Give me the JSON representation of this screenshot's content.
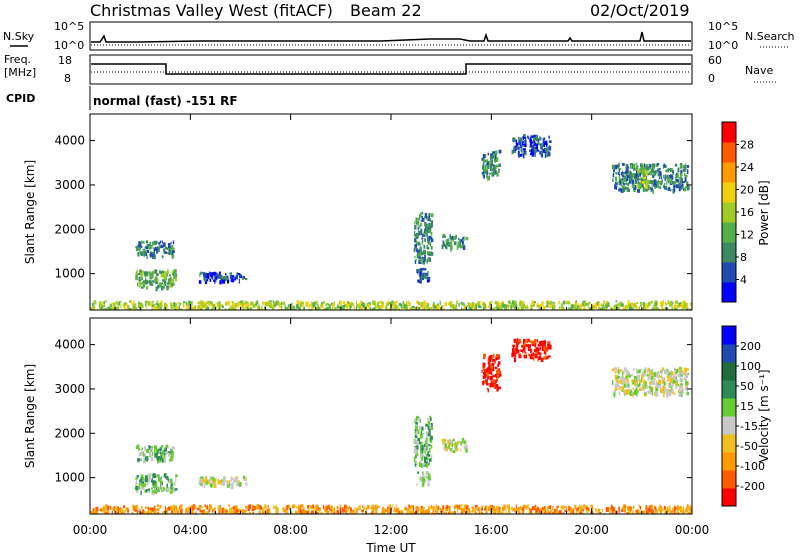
{
  "header": {
    "station": "Christmas Valley West (fitACF)",
    "beam": "Beam 22",
    "date": "02/Oct/2019"
  },
  "panels": {
    "nsky": {
      "left_label": "N.Sky",
      "right_label": "N.Search",
      "left_ticks": [
        "10^5",
        "10^0"
      ],
      "right_ticks": [
        "10^5",
        "10^0"
      ]
    },
    "freq": {
      "left_label_1": "Freq.",
      "left_label_2": "[MHz]",
      "right_label": "Nave",
      "left_ticks": [
        "18",
        "8"
      ],
      "right_ticks": [
        "60",
        "0"
      ]
    },
    "cpid": {
      "left_label": "CPID",
      "text": "normal (fast) -151 RF"
    }
  },
  "colors": {
    "power": [
      "#0000ff",
      "#1f4ab0",
      "#3b8a64",
      "#56b04a",
      "#a0cc28",
      "#f0d010",
      "#ff9a00",
      "#ff5a00",
      "#ff0000"
    ],
    "velocity": [
      "#ff0000",
      "#ff5a00",
      "#ff9a00",
      "#f0c020",
      "#c8c8c8",
      "#66cc33",
      "#2e8b57",
      "#1f6e3a",
      "#1f4ab0",
      "#0000ff"
    ]
  },
  "chart_data": [
    {
      "type": "heatmap",
      "name": "power",
      "xlabel": "",
      "ylabel": "Slant Range [km]",
      "xlim": [
        0,
        24
      ],
      "ylim": [
        180,
        4600
      ],
      "yticks": [
        1000,
        2000,
        3000,
        4000
      ],
      "xticks": [
        0,
        4,
        8,
        12,
        16,
        20,
        24
      ],
      "colorbar": {
        "label": "Power [dB]",
        "ticks": [
          "4",
          "8",
          "12",
          "16",
          "20",
          "24",
          "28"
        ],
        "range": [
          0,
          30
        ]
      },
      "regions": [
        {
          "t": [
            1.8,
            3.3
          ],
          "r": [
            1400,
            1750
          ],
          "level": 2
        },
        {
          "t": [
            1.8,
            3.4
          ],
          "r": [
            700,
            1100
          ],
          "level": 3
        },
        {
          "t": [
            4.3,
            6.2
          ],
          "r": [
            850,
            1050
          ],
          "level": 1
        },
        {
          "t": [
            12.9,
            13.6
          ],
          "r": [
            1300,
            2400
          ],
          "level": 2
        },
        {
          "t": [
            13.0,
            13.5
          ],
          "r": [
            850,
            1150
          ],
          "level": 1
        },
        {
          "t": [
            14.0,
            15.0
          ],
          "r": [
            1600,
            1900
          ],
          "level": 2
        },
        {
          "t": [
            15.6,
            16.3
          ],
          "r": [
            3200,
            3800
          ],
          "level": 2
        },
        {
          "t": [
            16.8,
            18.3
          ],
          "r": [
            3700,
            4150
          ],
          "level": 1
        },
        {
          "t": [
            20.8,
            23.8
          ],
          "r": [
            2900,
            3500
          ],
          "level": 2
        },
        {
          "t": [
            21.8,
            22.2
          ],
          "r": [
            3000,
            3400
          ],
          "level": 4
        },
        {
          "t": [
            0.0,
            24.0
          ],
          "r": [
            190,
            400
          ],
          "level": 4
        }
      ]
    },
    {
      "type": "heatmap",
      "name": "velocity",
      "xlabel": "Time UT",
      "ylabel": "Slant Range [km]",
      "xlim": [
        0,
        24
      ],
      "ylim": [
        180,
        4600
      ],
      "yticks": [
        1000,
        2000,
        3000,
        4000
      ],
      "xticks": [
        0,
        4,
        8,
        12,
        16,
        20,
        24
      ],
      "xtick_labels": [
        "00:00",
        "04:00",
        "08:00",
        "12:00",
        "16:00",
        "20:00",
        "00:00"
      ],
      "colorbar": {
        "label": "Velocity [m s⁻¹]",
        "ticks": [
          "-200",
          "-100",
          "-50",
          "-15",
          "15",
          "50",
          "100",
          "200"
        ],
        "range": [
          -250,
          250
        ]
      },
      "regions": [
        {
          "t": [
            1.8,
            3.3
          ],
          "r": [
            1400,
            1750
          ],
          "level": 5
        },
        {
          "t": [
            1.8,
            3.4
          ],
          "r": [
            700,
            1100
          ],
          "level": 5
        },
        {
          "t": [
            4.3,
            6.2
          ],
          "r": [
            850,
            1050
          ],
          "level": 4
        },
        {
          "t": [
            12.9,
            13.6
          ],
          "r": [
            1300,
            2400
          ],
          "level": 5
        },
        {
          "t": [
            13.0,
            13.5
          ],
          "r": [
            850,
            1150
          ],
          "level": 5
        },
        {
          "t": [
            14.0,
            15.0
          ],
          "r": [
            1600,
            1900
          ],
          "level": 4
        },
        {
          "t": [
            15.6,
            16.3
          ],
          "r": [
            3000,
            3800
          ],
          "level": 0
        },
        {
          "t": [
            16.8,
            18.3
          ],
          "r": [
            3700,
            4150
          ],
          "level": 0
        },
        {
          "t": [
            20.8,
            23.8
          ],
          "r": [
            2900,
            3500
          ],
          "level": 4
        },
        {
          "t": [
            0.0,
            24.0
          ],
          "r": [
            190,
            400
          ],
          "level": 2
        }
      ]
    }
  ]
}
